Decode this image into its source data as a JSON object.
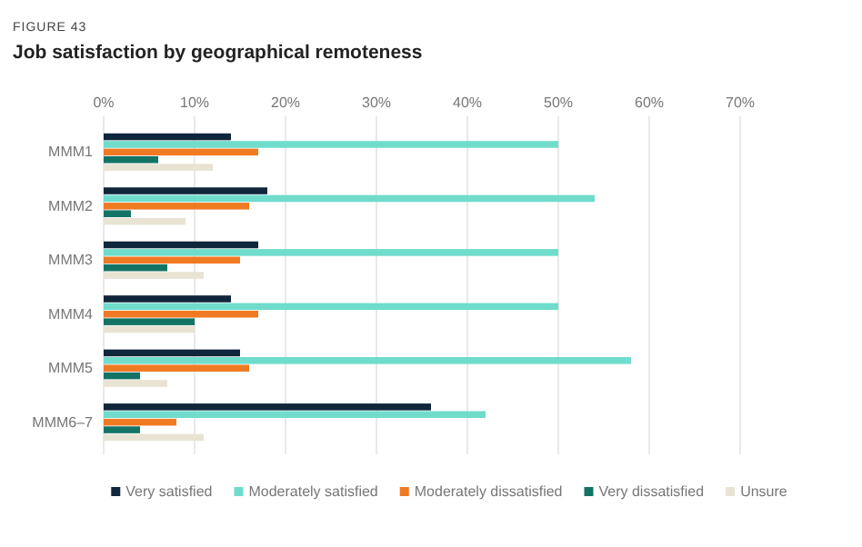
{
  "chart_data": {
    "type": "bar",
    "orientation": "horizontal",
    "subtitle": "FIGURE 43",
    "title": "Job satisfaction by geographical remoteness",
    "categories": [
      "MMM1",
      "MMM2",
      "MMM3",
      "MMM4",
      "MMM5",
      "MMM6–7"
    ],
    "series": [
      {
        "name": "Very satisfied",
        "color": "#10263b",
        "values": [
          14,
          18,
          17,
          14,
          15,
          36
        ]
      },
      {
        "name": "Moderately satisfied",
        "color": "#6fdccc",
        "values": [
          50,
          54,
          50,
          50,
          58,
          42
        ]
      },
      {
        "name": "Moderately dissatisfied",
        "color": "#f07a24",
        "values": [
          17,
          16,
          15,
          17,
          16,
          8
        ]
      },
      {
        "name": "Very dissatisfied",
        "color": "#137466",
        "values": [
          6,
          3,
          7,
          10,
          4,
          4
        ]
      },
      {
        "name": "Unsure",
        "color": "#e8e3d3",
        "values": [
          12,
          9,
          11,
          10,
          7,
          11
        ]
      }
    ],
    "xlim": [
      0,
      70
    ],
    "xticks": [
      {
        "value": 0,
        "label": "0%"
      },
      {
        "value": 10,
        "label": "10%"
      },
      {
        "value": 20,
        "label": "20%"
      },
      {
        "value": 30,
        "label": "30%"
      },
      {
        "value": 40,
        "label": "40%"
      },
      {
        "value": 50,
        "label": "50%"
      },
      {
        "value": 60,
        "label": "60%"
      },
      {
        "value": 70,
        "label": "70%"
      }
    ],
    "grid": "x",
    "legend": "bottom"
  }
}
